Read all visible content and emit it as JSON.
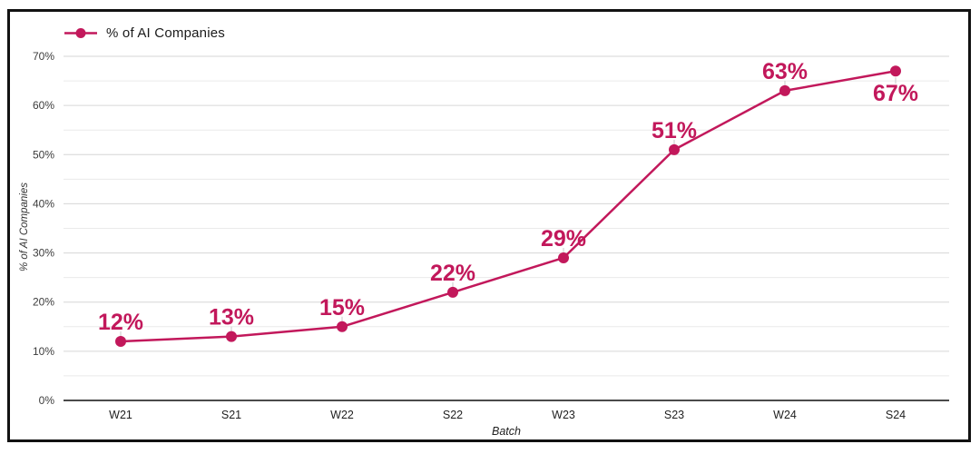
{
  "chart_data": {
    "type": "line",
    "title": "",
    "categories": [
      "W21",
      "S21",
      "W22",
      "S22",
      "W23",
      "S23",
      "W24",
      "S24"
    ],
    "series": [
      {
        "name": "% of AI Companies",
        "values": [
          12,
          13,
          15,
          22,
          29,
          51,
          63,
          67
        ]
      }
    ],
    "point_labels": [
      "12%",
      "13%",
      "15%",
      "22%",
      "29%",
      "51%",
      "63%",
      "67%"
    ],
    "label_positions": [
      "above",
      "above",
      "above",
      "above",
      "above",
      "above",
      "above",
      "below"
    ],
    "xlabel": "Batch",
    "ylabel": "% of AI Companies",
    "ylim": [
      0,
      70
    ],
    "y_tick_step": 10,
    "y_minor_step": 5,
    "y_tick_labels": [
      "0%",
      "10%",
      "20%",
      "30%",
      "40%",
      "50%",
      "60%",
      "70%"
    ],
    "grid": "horizontal",
    "legend": {
      "position": "top-left",
      "entries": [
        "% of AI Companies"
      ]
    },
    "colors": {
      "line": "#c2185b",
      "point": "#c2185b",
      "data_label": "#c2185b",
      "grid_major": "#d6d6d6",
      "grid_minor": "#eaeaea",
      "axis_line": "#4a4a4a",
      "tick_text": "#3c3c3c",
      "x_tick_text": "#1f1f1f",
      "leader_line": "#c9c9c9",
      "frame_border": "#121212",
      "background": "#ffffff",
      "legend_text": "#1a1a1a"
    }
  }
}
